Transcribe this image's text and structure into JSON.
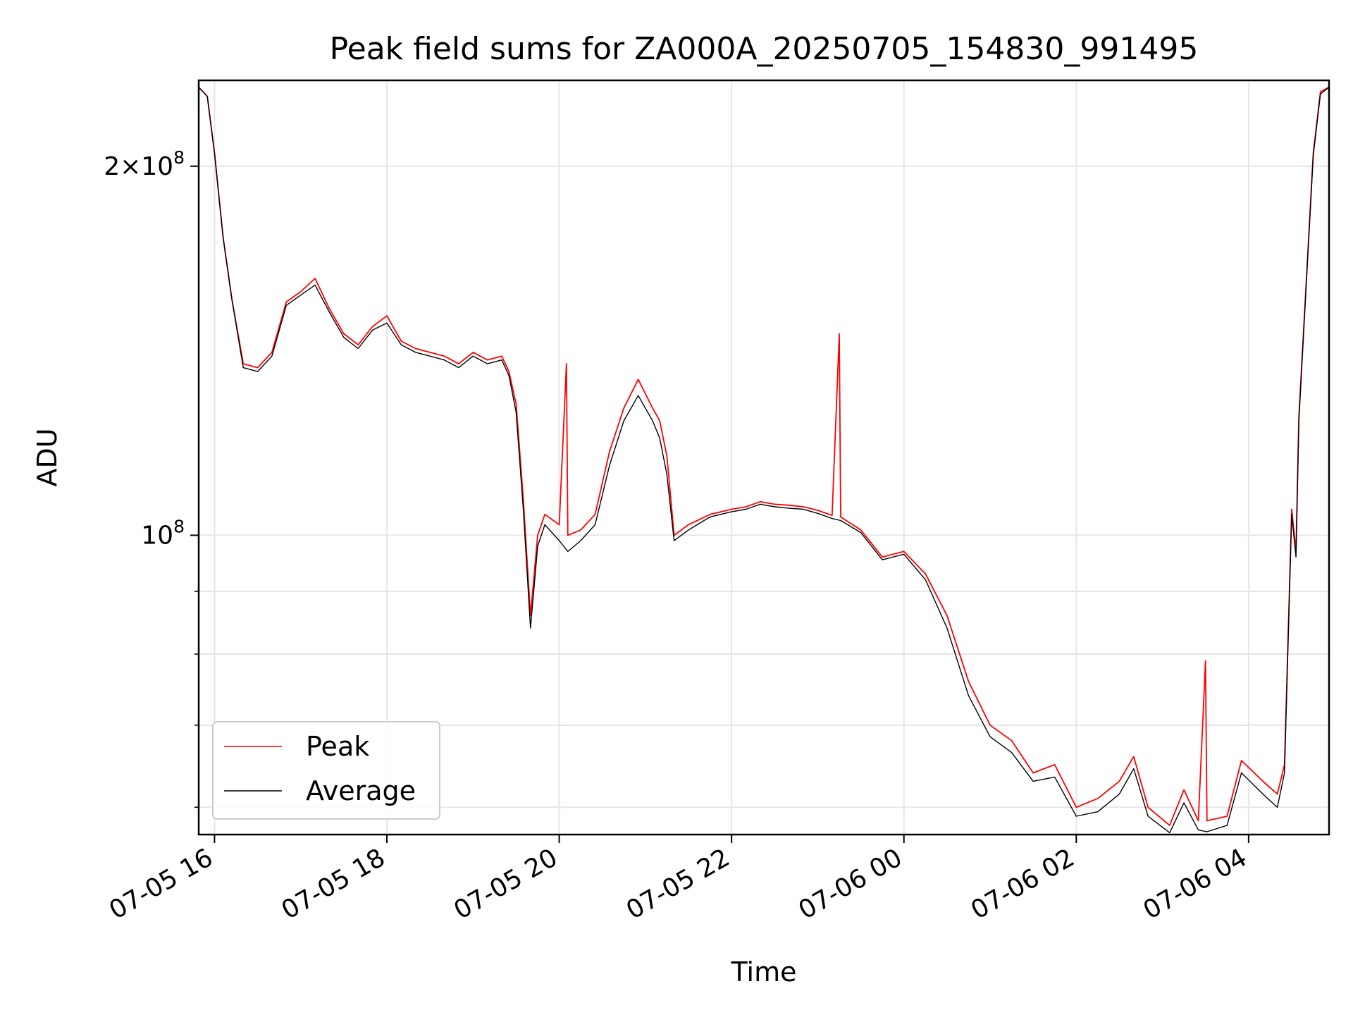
{
  "chart_data": {
    "type": "line",
    "title": "Peak field sums for ZA000A_20250705_154830_991495",
    "xlabel": "Time",
    "ylabel": "ADU",
    "y_scale": "log",
    "grid": true,
    "legend_position": "lower-left",
    "xlim": [
      "2025-07-05 15:49",
      "2025-07-06 04:56"
    ],
    "ylim": [
      57000000,
      235000000
    ],
    "x_ticks": [
      "07-05 16",
      "07-05 18",
      "07-05 20",
      "07-05 22",
      "07-06 00",
      "07-06 02",
      "07-06 04"
    ],
    "x_tick_values": [
      "2025-07-05 16:00",
      "2025-07-05 18:00",
      "2025-07-05 20:00",
      "2025-07-05 22:00",
      "2025-07-06 00:00",
      "2025-07-06 02:00",
      "2025-07-06 04:00"
    ],
    "y_major_ticks": [
      {
        "label_base": "2×10",
        "label_exp": "8",
        "value": 200000000
      },
      {
        "label_base": "10",
        "label_exp": "8",
        "value": 100000000
      }
    ],
    "y_minor_tick_values": [
      60000000,
      70000000,
      80000000,
      90000000
    ],
    "series": [
      {
        "name": "Peak",
        "color": "#ff0000",
        "points": [
          [
            "2025-07-05 15:49",
            232000000
          ],
          [
            "2025-07-05 15:55",
            228000000
          ],
          [
            "2025-07-05 16:00",
            205000000
          ],
          [
            "2025-07-05 16:06",
            175000000
          ],
          [
            "2025-07-05 16:12",
            156000000
          ],
          [
            "2025-07-05 16:20",
            138000000
          ],
          [
            "2025-07-05 16:30",
            137000000
          ],
          [
            "2025-07-05 16:40",
            141000000
          ],
          [
            "2025-07-05 16:50",
            155000000
          ],
          [
            "2025-07-05 17:00",
            158000000
          ],
          [
            "2025-07-05 17:10",
            162000000
          ],
          [
            "2025-07-05 17:20",
            153000000
          ],
          [
            "2025-07-05 17:30",
            146000000
          ],
          [
            "2025-07-05 17:40",
            143000000
          ],
          [
            "2025-07-05 17:50",
            148000000
          ],
          [
            "2025-07-05 18:00",
            151000000
          ],
          [
            "2025-07-05 18:10",
            144000000
          ],
          [
            "2025-07-05 18:20",
            142000000
          ],
          [
            "2025-07-05 18:30",
            141000000
          ],
          [
            "2025-07-05 18:40",
            140000000
          ],
          [
            "2025-07-05 18:50",
            138000000
          ],
          [
            "2025-07-05 19:00",
            141000000
          ],
          [
            "2025-07-05 19:10",
            139000000
          ],
          [
            "2025-07-05 19:20",
            140000000
          ],
          [
            "2025-07-05 19:25",
            136000000
          ],
          [
            "2025-07-05 19:30",
            128000000
          ],
          [
            "2025-07-05 19:35",
            107000000
          ],
          [
            "2025-07-05 19:40",
            86000000
          ],
          [
            "2025-07-05 19:45",
            100000000
          ],
          [
            "2025-07-05 19:50",
            104000000
          ],
          [
            "2025-07-05 20:00",
            102000000
          ],
          [
            "2025-07-05 20:05",
            138000000
          ],
          [
            "2025-07-05 20:06",
            100000000
          ],
          [
            "2025-07-05 20:15",
            101000000
          ],
          [
            "2025-07-05 20:25",
            104000000
          ],
          [
            "2025-07-05 20:35",
            117000000
          ],
          [
            "2025-07-05 20:45",
            127000000
          ],
          [
            "2025-07-05 20:55",
            134000000
          ],
          [
            "2025-07-05 21:05",
            127000000
          ],
          [
            "2025-07-05 21:10",
            124000000
          ],
          [
            "2025-07-05 21:15",
            116000000
          ],
          [
            "2025-07-05 21:20",
            100000000
          ],
          [
            "2025-07-05 21:30",
            102000000
          ],
          [
            "2025-07-05 21:45",
            104000000
          ],
          [
            "2025-07-05 22:00",
            105000000
          ],
          [
            "2025-07-05 22:10",
            105500000
          ],
          [
            "2025-07-05 22:20",
            106500000
          ],
          [
            "2025-07-05 22:30",
            106000000
          ],
          [
            "2025-07-05 22:40",
            105800000
          ],
          [
            "2025-07-05 22:50",
            105500000
          ],
          [
            "2025-07-05 23:00",
            104800000
          ],
          [
            "2025-07-05 23:10",
            103800000
          ],
          [
            "2025-07-05 23:15",
            146000000
          ],
          [
            "2025-07-05 23:16",
            103500000
          ],
          [
            "2025-07-05 23:30",
            101000000
          ],
          [
            "2025-07-05 23:45",
            96000000
          ],
          [
            "2025-07-06 00:00",
            97000000
          ],
          [
            "2025-07-06 00:15",
            93000000
          ],
          [
            "2025-07-06 00:30",
            86000000
          ],
          [
            "2025-07-06 00:45",
            76000000
          ],
          [
            "2025-07-06 01:00",
            70000000
          ],
          [
            "2025-07-06 01:15",
            68000000
          ],
          [
            "2025-07-06 01:30",
            64000000
          ],
          [
            "2025-07-06 01:45",
            65000000
          ],
          [
            "2025-07-06 02:00",
            60000000
          ],
          [
            "2025-07-06 02:15",
            61000000
          ],
          [
            "2025-07-06 02:30",
            63000000
          ],
          [
            "2025-07-06 02:40",
            66000000
          ],
          [
            "2025-07-06 02:50",
            60000000
          ],
          [
            "2025-07-06 03:05",
            58000000
          ],
          [
            "2025-07-06 03:15",
            62000000
          ],
          [
            "2025-07-06 03:25",
            58500000
          ],
          [
            "2025-07-06 03:30",
            79000000
          ],
          [
            "2025-07-06 03:31",
            58500000
          ],
          [
            "2025-07-06 03:45",
            59000000
          ],
          [
            "2025-07-06 03:55",
            65500000
          ],
          [
            "2025-07-06 04:10",
            63000000
          ],
          [
            "2025-07-06 04:20",
            61500000
          ],
          [
            "2025-07-06 04:25",
            65000000
          ],
          [
            "2025-07-06 04:30",
            105000000
          ],
          [
            "2025-07-06 04:33",
            97000000
          ],
          [
            "2025-07-06 04:35",
            125000000
          ],
          [
            "2025-07-06 04:40",
            160000000
          ],
          [
            "2025-07-06 04:45",
            205000000
          ],
          [
            "2025-07-06 04:50",
            230000000
          ],
          [
            "2025-07-06 04:56",
            232000000
          ]
        ]
      },
      {
        "name": "Average",
        "color": "#000000",
        "points": [
          [
            "2025-07-05 15:49",
            232000000
          ],
          [
            "2025-07-05 15:55",
            228000000
          ],
          [
            "2025-07-05 16:00",
            205000000
          ],
          [
            "2025-07-05 16:06",
            175000000
          ],
          [
            "2025-07-05 16:12",
            156000000
          ],
          [
            "2025-07-05 16:20",
            137000000
          ],
          [
            "2025-07-05 16:30",
            136000000
          ],
          [
            "2025-07-05 16:40",
            140000000
          ],
          [
            "2025-07-05 16:50",
            154000000
          ],
          [
            "2025-07-05 17:00",
            157000000
          ],
          [
            "2025-07-05 17:10",
            160000000
          ],
          [
            "2025-07-05 17:20",
            152000000
          ],
          [
            "2025-07-05 17:30",
            145000000
          ],
          [
            "2025-07-05 17:40",
            142000000
          ],
          [
            "2025-07-05 17:50",
            147000000
          ],
          [
            "2025-07-05 18:00",
            149000000
          ],
          [
            "2025-07-05 18:10",
            143000000
          ],
          [
            "2025-07-05 18:20",
            141000000
          ],
          [
            "2025-07-05 18:30",
            140000000
          ],
          [
            "2025-07-05 18:40",
            139000000
          ],
          [
            "2025-07-05 18:50",
            137000000
          ],
          [
            "2025-07-05 19:00",
            140000000
          ],
          [
            "2025-07-05 19:10",
            138000000
          ],
          [
            "2025-07-05 19:20",
            139000000
          ],
          [
            "2025-07-05 19:25",
            135000000
          ],
          [
            "2025-07-05 19:30",
            126000000
          ],
          [
            "2025-07-05 19:35",
            105000000
          ],
          [
            "2025-07-05 19:40",
            84000000
          ],
          [
            "2025-07-05 19:45",
            98000000
          ],
          [
            "2025-07-05 19:50",
            102000000
          ],
          [
            "2025-07-05 20:00",
            99000000
          ],
          [
            "2025-07-05 20:06",
            97000000
          ],
          [
            "2025-07-05 20:15",
            99000000
          ],
          [
            "2025-07-05 20:25",
            102000000
          ],
          [
            "2025-07-05 20:35",
            114000000
          ],
          [
            "2025-07-05 20:45",
            124000000
          ],
          [
            "2025-07-05 20:55",
            130000000
          ],
          [
            "2025-07-05 21:05",
            124000000
          ],
          [
            "2025-07-05 21:10",
            120000000
          ],
          [
            "2025-07-05 21:15",
            112000000
          ],
          [
            "2025-07-05 21:20",
            99000000
          ],
          [
            "2025-07-05 21:30",
            101000000
          ],
          [
            "2025-07-05 21:45",
            103500000
          ],
          [
            "2025-07-05 22:00",
            104500000
          ],
          [
            "2025-07-05 22:10",
            105000000
          ],
          [
            "2025-07-05 22:20",
            106000000
          ],
          [
            "2025-07-05 22:30",
            105500000
          ],
          [
            "2025-07-05 22:40",
            105200000
          ],
          [
            "2025-07-05 22:50",
            105000000
          ],
          [
            "2025-07-05 23:00",
            104200000
          ],
          [
            "2025-07-05 23:10",
            103200000
          ],
          [
            "2025-07-05 23:16",
            102800000
          ],
          [
            "2025-07-05 23:30",
            100500000
          ],
          [
            "2025-07-05 23:45",
            95500000
          ],
          [
            "2025-07-06 00:00",
            96500000
          ],
          [
            "2025-07-06 00:15",
            92000000
          ],
          [
            "2025-07-06 00:30",
            84000000
          ],
          [
            "2025-07-06 00:45",
            74000000
          ],
          [
            "2025-07-06 01:00",
            68500000
          ],
          [
            "2025-07-06 01:15",
            66500000
          ],
          [
            "2025-07-06 01:30",
            63000000
          ],
          [
            "2025-07-06 01:45",
            63500000
          ],
          [
            "2025-07-06 02:00",
            59000000
          ],
          [
            "2025-07-06 02:15",
            59500000
          ],
          [
            "2025-07-06 02:30",
            61500000
          ],
          [
            "2025-07-06 02:40",
            64500000
          ],
          [
            "2025-07-06 02:50",
            59000000
          ],
          [
            "2025-07-06 03:05",
            57200000
          ],
          [
            "2025-07-06 03:15",
            60500000
          ],
          [
            "2025-07-06 03:25",
            57500000
          ],
          [
            "2025-07-06 03:31",
            57300000
          ],
          [
            "2025-07-06 03:45",
            58000000
          ],
          [
            "2025-07-06 03:55",
            64000000
          ],
          [
            "2025-07-06 04:10",
            61500000
          ],
          [
            "2025-07-06 04:20",
            60000000
          ],
          [
            "2025-07-06 04:25",
            64000000
          ],
          [
            "2025-07-06 04:30",
            104000000
          ],
          [
            "2025-07-06 04:33",
            96000000
          ],
          [
            "2025-07-06 04:35",
            124000000
          ],
          [
            "2025-07-06 04:40",
            159000000
          ],
          [
            "2025-07-06 04:45",
            204000000
          ],
          [
            "2025-07-06 04:50",
            229000000
          ],
          [
            "2025-07-06 04:56",
            232000000
          ]
        ]
      }
    ]
  }
}
